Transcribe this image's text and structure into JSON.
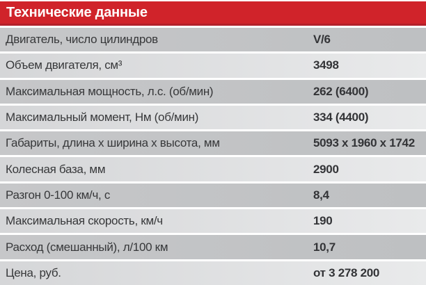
{
  "table": {
    "title": "Технические данные",
    "rows": [
      {
        "label": "Двигатель, число цилиндров",
        "value": "V/6"
      },
      {
        "label": "Объем двигателя, см³",
        "value": "3498"
      },
      {
        "label": "Максимальная мощность, л.с. (об/мин)",
        "value": "262 (6400)"
      },
      {
        "label": "Максимальный момент, Нм (об/мин)",
        "value": "334 (4400)"
      },
      {
        "label": "Габариты, длина x ширина x высота, мм",
        "value": "5093 x 1960 x 1742"
      },
      {
        "label": "Колесная база, мм",
        "value": "2900"
      },
      {
        "label": "Разгон 0-100 км/ч, с",
        "value": "8,4"
      },
      {
        "label": "Максимальная скорость, км/ч",
        "value": "190"
      },
      {
        "label": "Расход (смешанный), л/100 км",
        "value": "10,7"
      },
      {
        "label": "Цена, руб.",
        "value": "от 3 278 200"
      }
    ]
  },
  "colors": {
    "header_bg": "#d0232a",
    "header_underline": "#b3202a",
    "header_text": "#ffffff",
    "row_odd_bg": "#c1c2c4",
    "row_even_bg": "#dfe0e2",
    "separator": "#ffffff",
    "label_text": "#37383a",
    "value_text": "#333437"
  }
}
